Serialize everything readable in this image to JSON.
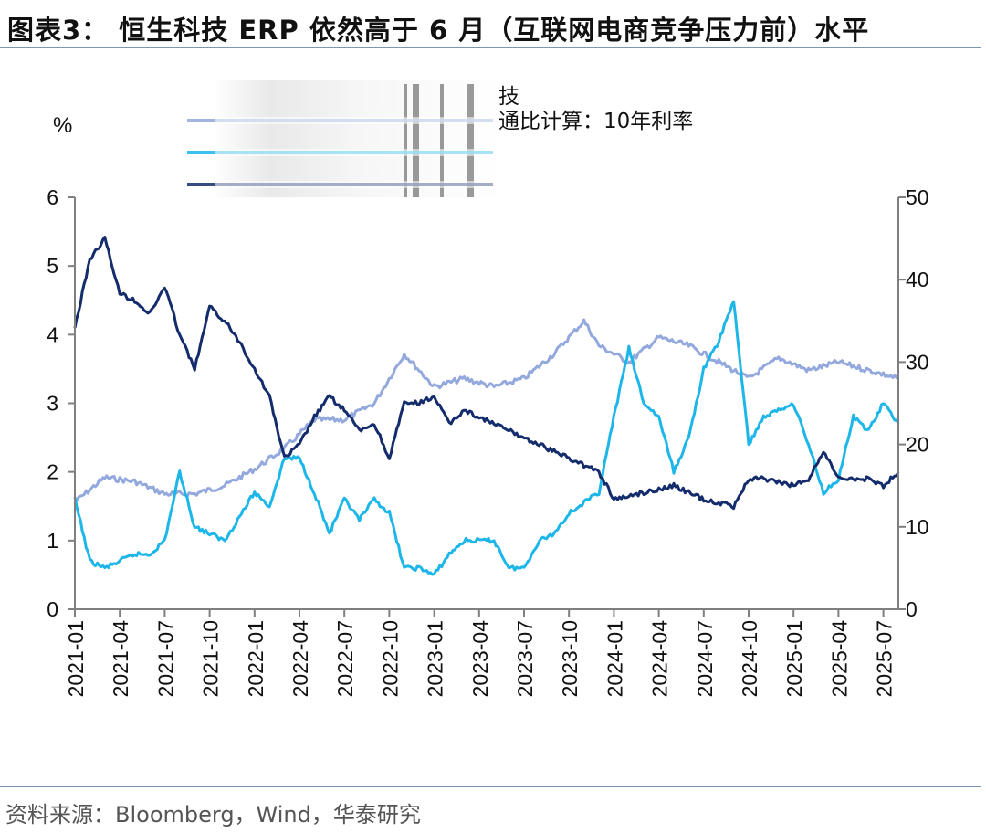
{
  "title": "图表3： 恒生科技 ERP 依然高于 6 月（互联网电商竞争压力前）水平",
  "source": "资料来源：Bloomberg，Wind，华泰研究",
  "chart_data": {
    "type": "line",
    "left_axis_label": "%",
    "ylim_left": [
      0,
      6
    ],
    "ylim_right": [
      0,
      50
    ],
    "yticks_left": [
      "0",
      "1",
      "2",
      "3",
      "4",
      "5",
      "6"
    ],
    "yticks_right": [
      "0",
      "10",
      "20",
      "30",
      "40",
      "50"
    ],
    "xticks": [
      "2021-01",
      "2021-04",
      "2021-07",
      "2021-10",
      "2022-01",
      "2022-04",
      "2022-07",
      "2022-10",
      "2023-01",
      "2023-04",
      "2023-07",
      "2023-10",
      "2024-01",
      "2024-04",
      "2024-07",
      "2024-10",
      "2025-01",
      "2025-04",
      "2025-07"
    ],
    "legend_position": "top-center",
    "legend_header": "技",
    "legend_entries": [
      "",
      "",
      "通比计算：10年利率"
    ],
    "series": [
      {
        "color": "#93a8dc",
        "axis": "right",
        "x": [
          "2021-01",
          "2021-03",
          "2021-05",
          "2021-07",
          "2021-09",
          "2021-11",
          "2022-01",
          "2022-03",
          "2022-05",
          "2022-07",
          "2022-09",
          "2022-11",
          "2023-01",
          "2023-03",
          "2023-05",
          "2023-07",
          "2023-09",
          "2023-11",
          "2023-12",
          "2024-02",
          "2024-04",
          "2024-06",
          "2024-08",
          "2024-10",
          "2024-12",
          "2025-02",
          "2025-04",
          "2025-06",
          "2025-08"
        ],
        "values": [
          13,
          16,
          15.5,
          14,
          14,
          15,
          17,
          19.5,
          23,
          23,
          25,
          31,
          27,
          28,
          27,
          28,
          31,
          35,
          32,
          30,
          33,
          32,
          30,
          28,
          30.5,
          29,
          30,
          29,
          28
        ]
      },
      {
        "color": "#1cb6e8",
        "axis": "left",
        "x": [
          "2021-01",
          "2021-02",
          "2021-03",
          "2021-05",
          "2021-06",
          "2021-07",
          "2021-08",
          "2021-09",
          "2021-11",
          "2022-01",
          "2022-02",
          "2022-03",
          "2022-04",
          "2022-05",
          "2022-06",
          "2022-07",
          "2022-08",
          "2022-09",
          "2022-10",
          "2022-11",
          "2022-12",
          "2023-01",
          "2023-02",
          "2023-03",
          "2023-05",
          "2023-06",
          "2023-07",
          "2023-08",
          "2023-09",
          "2023-10",
          "2023-12",
          "2024-01",
          "2024-02",
          "2024-03",
          "2024-04",
          "2024-05",
          "2024-06",
          "2024-07",
          "2024-08",
          "2024-09",
          "2024-10",
          "2024-11",
          "2025-01",
          "2025-02",
          "2025-03",
          "2025-04",
          "2025-05",
          "2025-06",
          "2025-07",
          "2025-08"
        ],
        "values": [
          1.6,
          0.7,
          0.6,
          0.8,
          0.8,
          1.0,
          2.0,
          1.2,
          1.0,
          1.7,
          1.5,
          2.2,
          2.2,
          1.7,
          1.1,
          1.6,
          1.3,
          1.6,
          1.4,
          0.6,
          0.6,
          0.5,
          0.8,
          1.0,
          1.0,
          0.6,
          0.6,
          1.0,
          1.1,
          1.4,
          1.7,
          2.8,
          3.8,
          3.0,
          2.8,
          2.0,
          2.5,
          3.5,
          3.9,
          4.5,
          2.4,
          2.8,
          3.0,
          2.4,
          1.7,
          1.9,
          2.8,
          2.6,
          3.0,
          2.7
        ]
      },
      {
        "color": "#142c6c",
        "axis": "left",
        "x": [
          "2021-01",
          "2021-02",
          "2021-03",
          "2021-04",
          "2021-05",
          "2021-06",
          "2021-07",
          "2021-08",
          "2021-09",
          "2021-10",
          "2021-11",
          "2021-12",
          "2022-01",
          "2022-02",
          "2022-03",
          "2022-04",
          "2022-05",
          "2022-06",
          "2022-07",
          "2022-08",
          "2022-09",
          "2022-10",
          "2022-11",
          "2022-12",
          "2023-01",
          "2023-02",
          "2023-03",
          "2023-05",
          "2023-06",
          "2023-07",
          "2023-08",
          "2023-10",
          "2023-12",
          "2024-01",
          "2024-03",
          "2024-05",
          "2024-07",
          "2024-09",
          "2024-10",
          "2024-11",
          "2025-01",
          "2025-02",
          "2025-03",
          "2025-04",
          "2025-05",
          "2025-06",
          "2025-07",
          "2025-08"
        ],
        "values": [
          4.1,
          5.1,
          5.4,
          4.6,
          4.5,
          4.3,
          4.7,
          4.0,
          3.5,
          4.4,
          4.2,
          3.9,
          3.5,
          3.1,
          2.2,
          2.4,
          2.8,
          3.1,
          2.9,
          2.6,
          2.7,
          2.2,
          3.0,
          3.0,
          3.1,
          2.7,
          2.9,
          2.7,
          2.6,
          2.5,
          2.4,
          2.2,
          2.0,
          1.6,
          1.7,
          1.8,
          1.6,
          1.5,
          1.9,
          1.9,
          1.8,
          1.9,
          2.3,
          1.9,
          1.9,
          1.9,
          1.8,
          2.0
        ]
      }
    ]
  }
}
